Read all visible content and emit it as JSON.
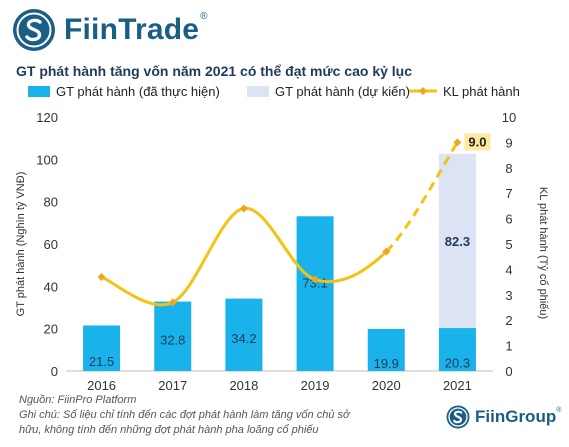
{
  "brand": {
    "name": "FiinTrade",
    "reg": "®",
    "color": "#1a5e86",
    "footer_name": "FiinGroup",
    "footer_reg": "®"
  },
  "colors": {
    "actual_bar": "#1ab2ea",
    "planned_bar": "#dce3f5",
    "line": "#f5c211",
    "marker": "#f2a51a",
    "label_dark": "#1f3a5a"
  },
  "notes": {
    "source": "Nguồn: FiinPro Platform",
    "line1": "Ghi chú: Số liệu chỉ tính đến các đợt phát hành làm tăng vốn chủ sở",
    "line2": "hữu, không tính đến những đợt phát hành pha loãng cổ phiếu"
  },
  "chart_data": {
    "type": "bar",
    "title": "GT phát hành tăng vốn năm 2021 có thể đạt mức cao kỷ lục",
    "categories": [
      "2016",
      "2017",
      "2018",
      "2019",
      "2020",
      "2021"
    ],
    "series": [
      {
        "name": "GT phát hành (đã thực hiện)",
        "type": "bar",
        "axis": "left",
        "values": [
          21.5,
          32.8,
          34.2,
          73.1,
          19.9,
          20.3
        ],
        "labels": [
          "21.5",
          "32.8",
          "34.2",
          "73.1",
          "19.9",
          "20.3"
        ]
      },
      {
        "name": "GT phát hành (dự kiến)",
        "type": "bar",
        "axis": "left",
        "stacked": true,
        "values": [
          0,
          0,
          0,
          0,
          0,
          82.3
        ],
        "labels": [
          "",
          "",
          "",
          "",
          "",
          "82.3"
        ]
      },
      {
        "name": "KL phát hành",
        "type": "line",
        "axis": "right",
        "smooth": true,
        "dashed_last_segment": true,
        "values": [
          3.7,
          2.7,
          6.4,
          3.6,
          4.7,
          9.0
        ],
        "labels": [
          "",
          "",
          "",
          "",
          "",
          "9.0"
        ]
      }
    ],
    "ylabel": "GT phát hành (Nghìn tỷ VNĐ)",
    "ylabel_right": "KL phát hành (Tỷ cổ phiếu)",
    "ylim": [
      0,
      120
    ],
    "ylim_right": [
      0,
      10
    ],
    "yticks": [
      "0",
      "20",
      "40",
      "60",
      "80",
      "100",
      "120"
    ],
    "yticks_right": [
      "0",
      "1",
      "2",
      "3",
      "4",
      "5",
      "6",
      "7",
      "8",
      "9",
      "10"
    ],
    "legend_position": "top",
    "grid": false
  }
}
